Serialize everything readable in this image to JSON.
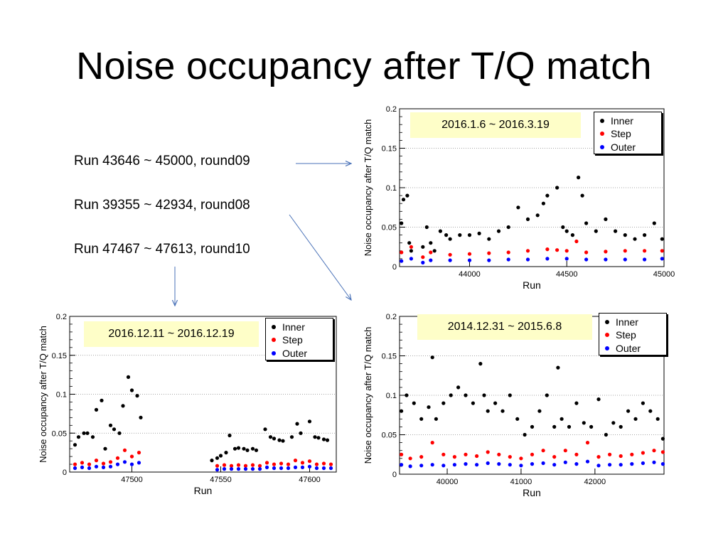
{
  "slide": {
    "title": "Noise occupancy after T/Q match"
  },
  "runs": [
    {
      "label": "Run 43646 ~ 45000, round09"
    },
    {
      "label": "Run 39355 ~ 42934, round08"
    },
    {
      "label": "Run 47467 ~ 47613, round10"
    }
  ],
  "legend": [
    {
      "label": "Inner",
      "color": "#000000"
    },
    {
      "label": "Step",
      "color": "#ff0000"
    },
    {
      "label": "Outer",
      "color": "#0000ff"
    }
  ],
  "chart_data": [
    {
      "type": "scatter",
      "date_range": "2016.1.6 ~ 2016.3.19",
      "xlabel": "Run",
      "ylabel": "Noise occupancy after T/Q match",
      "xlim": [
        43640,
        45000
      ],
      "ylim": [
        0,
        0.2
      ],
      "xticks": [
        "44000",
        "44500",
        "45000"
      ],
      "yticks": [
        "0",
        "0.05",
        "0.1",
        "0.15",
        "0.2"
      ],
      "grid": "horizontal dotted",
      "legend_position": "top-right",
      "series": [
        {
          "name": "Inner",
          "color": "#000000",
          "x": [
            43650,
            43660,
            43680,
            43690,
            43700,
            43760,
            43780,
            43800,
            43820,
            43850,
            43880,
            43900,
            43950,
            44000,
            44050,
            44100,
            44150,
            44200,
            44250,
            44300,
            44350,
            44380,
            44400,
            44450,
            44480,
            44500,
            44530,
            44560,
            44580,
            44600,
            44650,
            44700,
            44750,
            44800,
            44850,
            44900,
            44950,
            44990
          ],
          "y": [
            0.055,
            0.085,
            0.09,
            0.03,
            0.02,
            0.025,
            0.05,
            0.03,
            0.02,
            0.045,
            0.04,
            0.035,
            0.04,
            0.04,
            0.042,
            0.035,
            0.045,
            0.05,
            0.075,
            0.06,
            0.065,
            0.08,
            0.09,
            0.1,
            0.05,
            0.045,
            0.04,
            0.113,
            0.09,
            0.055,
            0.045,
            0.06,
            0.045,
            0.04,
            0.035,
            0.04,
            0.055,
            0.035
          ]
        },
        {
          "name": "Step",
          "color": "#ff0000",
          "x": [
            43650,
            43700,
            43760,
            43800,
            43900,
            44000,
            44100,
            44200,
            44300,
            44400,
            44450,
            44500,
            44550,
            44600,
            44700,
            44800,
            44900,
            44990
          ],
          "y": [
            0.018,
            0.025,
            0.012,
            0.018,
            0.015,
            0.016,
            0.017,
            0.018,
            0.02,
            0.022,
            0.021,
            0.02,
            0.032,
            0.018,
            0.019,
            0.02,
            0.02,
            0.02
          ]
        },
        {
          "name": "Outer",
          "color": "#0000ff",
          "x": [
            43650,
            43700,
            43760,
            43800,
            43900,
            44000,
            44100,
            44200,
            44300,
            44400,
            44500,
            44600,
            44700,
            44800,
            44900,
            44990
          ],
          "y": [
            0.007,
            0.01,
            0.005,
            0.008,
            0.008,
            0.008,
            0.008,
            0.009,
            0.009,
            0.01,
            0.01,
            0.009,
            0.009,
            0.009,
            0.009,
            0.01
          ]
        }
      ]
    },
    {
      "type": "scatter",
      "date_range": "2016.12.11 ~ 2016.12.19",
      "xlabel": "Run",
      "ylabel": "Noise occupancy after T/Q match",
      "xlim": [
        47465,
        47615
      ],
      "ylim": [
        0,
        0.2
      ],
      "xticks": [
        "47500",
        "47550",
        "47600"
      ],
      "yticks": [
        "0",
        "0.05",
        "0.1",
        "0.15",
        "0.2"
      ],
      "grid": "horizontal dotted",
      "legend_position": "top-right",
      "series": [
        {
          "name": "Inner",
          "color": "#000000",
          "x": [
            47468,
            47470,
            47473,
            47475,
            47478,
            47480,
            47483,
            47485,
            47488,
            47490,
            47493,
            47495,
            47498,
            47500,
            47503,
            47505,
            47545,
            47548,
            47550,
            47553,
            47555,
            47558,
            47560,
            47563,
            47565,
            47568,
            47570,
            47575,
            47578,
            47580,
            47583,
            47585,
            47590,
            47593,
            47595,
            47600,
            47603,
            47605,
            47608,
            47610
          ],
          "y": [
            0.035,
            0.045,
            0.05,
            0.05,
            0.045,
            0.08,
            0.092,
            0.03,
            0.06,
            0.055,
            0.05,
            0.085,
            0.122,
            0.105,
            0.098,
            0.07,
            0.015,
            0.018,
            0.021,
            0.025,
            0.047,
            0.03,
            0.031,
            0.03,
            0.028,
            0.03,
            0.028,
            0.055,
            0.045,
            0.043,
            0.041,
            0.04,
            0.045,
            0.062,
            0.05,
            0.065,
            0.045,
            0.044,
            0.042,
            0.041
          ]
        },
        {
          "name": "Step",
          "color": "#ff0000",
          "x": [
            47468,
            47472,
            47476,
            47480,
            47484,
            47488,
            47492,
            47496,
            47500,
            47504,
            47548,
            47552,
            47556,
            47560,
            47564,
            47568,
            47572,
            47576,
            47580,
            47584,
            47588,
            47592,
            47596,
            47600,
            47604,
            47608,
            47612
          ],
          "y": [
            0.01,
            0.012,
            0.01,
            0.015,
            0.011,
            0.013,
            0.018,
            0.028,
            0.02,
            0.025,
            0.008,
            0.009,
            0.008,
            0.009,
            0.008,
            0.009,
            0.008,
            0.012,
            0.01,
            0.011,
            0.01,
            0.015,
            0.012,
            0.014,
            0.01,
            0.011,
            0.01
          ]
        },
        {
          "name": "Outer",
          "color": "#0000ff",
          "x": [
            47468,
            47472,
            47476,
            47480,
            47484,
            47488,
            47492,
            47496,
            47500,
            47504,
            47548,
            47552,
            47556,
            47560,
            47564,
            47568,
            47572,
            47576,
            47580,
            47584,
            47588,
            47592,
            47596,
            47600,
            47604,
            47608,
            47612
          ],
          "y": [
            0.005,
            0.006,
            0.005,
            0.007,
            0.006,
            0.007,
            0.01,
            0.013,
            0.01,
            0.012,
            0.003,
            0.004,
            0.004,
            0.004,
            0.004,
            0.004,
            0.004,
            0.006,
            0.005,
            0.005,
            0.005,
            0.006,
            0.006,
            0.007,
            0.005,
            0.005,
            0.005
          ]
        }
      ]
    },
    {
      "type": "scatter",
      "date_range": "2014.12.31 ~ 2015.6.8",
      "xlabel": "Run",
      "ylabel": "Noise occupancy after T/Q match",
      "xlim": [
        39355,
        42935
      ],
      "ylim": [
        0,
        0.2
      ],
      "xticks": [
        "40000",
        "41000",
        "42000"
      ],
      "yticks": [
        "0",
        "0.05",
        "0.1",
        "0.15",
        "0.2"
      ],
      "grid": "horizontal dotted",
      "legend_position": "top-right",
      "series": [
        {
          "name": "Inner",
          "color": "#000000",
          "x": [
            39380,
            39450,
            39550,
            39650,
            39750,
            39800,
            39850,
            39950,
            40050,
            40150,
            40250,
            40350,
            40450,
            40500,
            40550,
            40650,
            40750,
            40850,
            40950,
            41050,
            41150,
            41250,
            41350,
            41450,
            41500,
            41550,
            41650,
            41750,
            41850,
            41950,
            42050,
            42150,
            42250,
            42350,
            42450,
            42550,
            42650,
            42750,
            42850,
            42920
          ],
          "y": [
            0.08,
            0.1,
            0.09,
            0.07,
            0.085,
            0.148,
            0.07,
            0.09,
            0.1,
            0.11,
            0.1,
            0.09,
            0.14,
            0.1,
            0.08,
            0.09,
            0.08,
            0.1,
            0.07,
            0.05,
            0.06,
            0.08,
            0.1,
            0.06,
            0.135,
            0.07,
            0.06,
            0.09,
            0.065,
            0.06,
            0.095,
            0.05,
            0.065,
            0.06,
            0.08,
            0.07,
            0.09,
            0.08,
            0.07,
            0.045
          ]
        },
        {
          "name": "Step",
          "color": "#ff0000",
          "x": [
            39380,
            39500,
            39650,
            39800,
            39950,
            40100,
            40250,
            40400,
            40550,
            40700,
            40850,
            41000,
            41150,
            41300,
            41450,
            41600,
            41750,
            41900,
            42050,
            42200,
            42350,
            42500,
            42650,
            42800,
            42920
          ],
          "y": [
            0.025,
            0.02,
            0.022,
            0.04,
            0.025,
            0.022,
            0.025,
            0.023,
            0.028,
            0.025,
            0.022,
            0.02,
            0.025,
            0.03,
            0.022,
            0.03,
            0.025,
            0.04,
            0.022,
            0.025,
            0.023,
            0.025,
            0.027,
            0.03,
            0.028
          ]
        },
        {
          "name": "Outer",
          "color": "#0000ff",
          "x": [
            39380,
            39500,
            39650,
            39800,
            39950,
            40100,
            40250,
            40400,
            40550,
            40700,
            40850,
            41000,
            41150,
            41300,
            41450,
            41600,
            41750,
            41900,
            42050,
            42200,
            42350,
            42500,
            42650,
            42800,
            42920
          ],
          "y": [
            0.012,
            0.01,
            0.011,
            0.012,
            0.011,
            0.012,
            0.013,
            0.012,
            0.014,
            0.013,
            0.012,
            0.011,
            0.013,
            0.014,
            0.012,
            0.015,
            0.013,
            0.016,
            0.011,
            0.012,
            0.012,
            0.013,
            0.014,
            0.015,
            0.013
          ]
        }
      ]
    }
  ]
}
